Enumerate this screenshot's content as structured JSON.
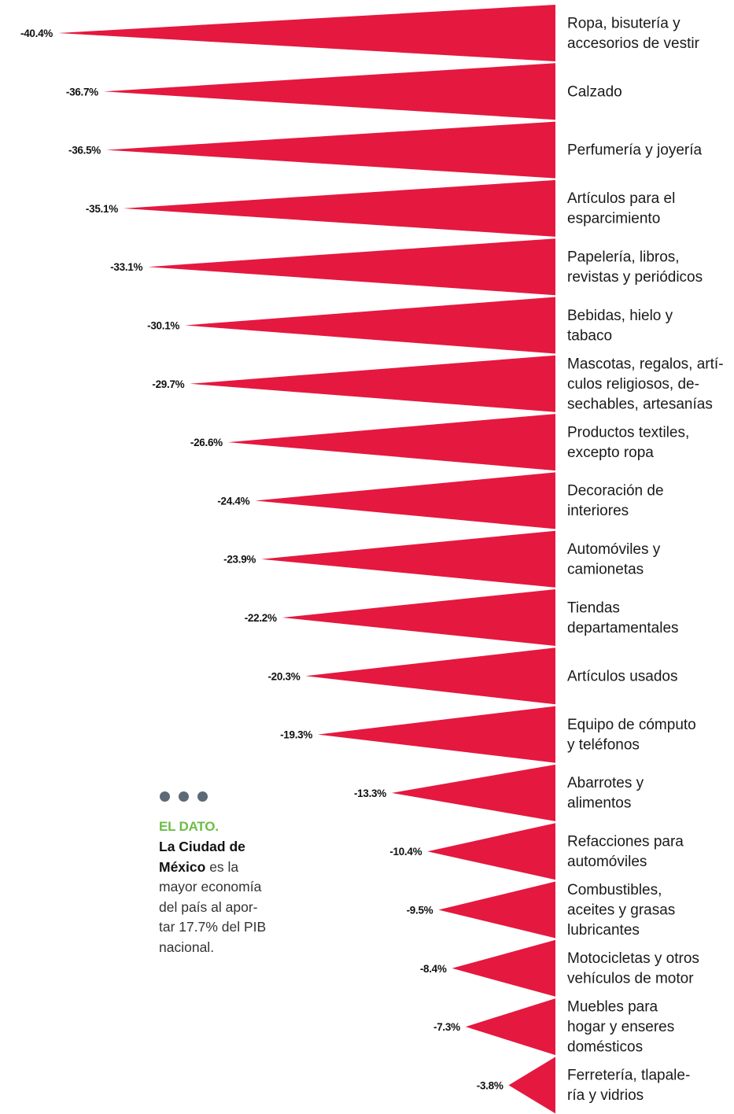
{
  "chart_data": {
    "type": "bar",
    "categories": [
      [
        "Ropa, bisutería y",
        "accesorios de vestir"
      ],
      [
        "Calzado"
      ],
      [
        "Perfumería y joyería"
      ],
      [
        "Artículos para el",
        "esparcimiento"
      ],
      [
        "Papelería, libros,",
        "revistas y periódicos"
      ],
      [
        "Bebidas, hielo y",
        "tabaco"
      ],
      [
        "Mascotas, regalos, artí-",
        "culos religiosos, de-",
        "sechables, artesanías"
      ],
      [
        "Productos textiles,",
        "excepto ropa"
      ],
      [
        "Decoración de",
        "interiores"
      ],
      [
        "Automóviles y",
        "camionetas"
      ],
      [
        "Tiendas",
        "departamentales"
      ],
      [
        "Artículos usados"
      ],
      [
        "Equipo de cómputo",
        "y teléfonos"
      ],
      [
        "Abarrotes y",
        "alimentos"
      ],
      [
        "Refacciones para",
        "automóviles"
      ],
      [
        "Combustibles,",
        "aceites y grasas",
        "lubricantes"
      ],
      [
        "Motocicletas y otros",
        "vehículos de motor"
      ],
      [
        "Muebles para",
        "hogar y enseres",
        "domésticos"
      ],
      [
        "Ferretería, tlapale-",
        "ría y vidrios"
      ]
    ],
    "values": [
      -40.4,
      -36.7,
      -36.5,
      -35.1,
      -33.1,
      -30.1,
      -29.7,
      -26.6,
      -24.4,
      -23.9,
      -22.2,
      -20.3,
      -19.3,
      -13.3,
      -10.4,
      -9.5,
      -8.4,
      -7.3,
      -3.8
    ],
    "value_labels": [
      "-40.4%",
      "-36.7%",
      "-36.5%",
      "-35.1%",
      "-33.1%",
      "-30.1%",
      "-29.7%",
      "-26.6%",
      "-24.4%",
      "-23.9%",
      "-22.2%",
      "-20.3%",
      "-19.3%",
      "-13.3%",
      "-10.4%",
      "-9.5%",
      "-8.4%",
      "-7.3%",
      "-3.8%"
    ],
    "orientation": "horizontal",
    "bar_shape": "triangle",
    "color": "#e5183f",
    "title": "",
    "xlabel": "",
    "ylabel": "",
    "xlim": [
      -40.4,
      0
    ],
    "grid": false,
    "legend": "none"
  },
  "dato": {
    "dots": 3,
    "heading": "EL DATO.",
    "bold_text": "La Ciudad de México",
    "body_text": "es la mayor economía del país al aportar 17.7% del PIB nacional.",
    "lines": [
      [
        {
          "t": "La Ciudad de",
          "b": true
        }
      ],
      [
        {
          "t": "México",
          "b": true
        },
        {
          "t": " es la",
          "b": false
        }
      ],
      [
        {
          "t": "mayor economía",
          "b": false
        }
      ],
      [
        {
          "t": "del país al apor-",
          "b": false
        }
      ],
      [
        {
          "t": "tar 17.7% del PIB",
          "b": false
        }
      ],
      [
        {
          "t": "nacional.",
          "b": false
        }
      ]
    ],
    "dot_color": "#5b6a76",
    "heading_color": "#6cbd45"
  }
}
